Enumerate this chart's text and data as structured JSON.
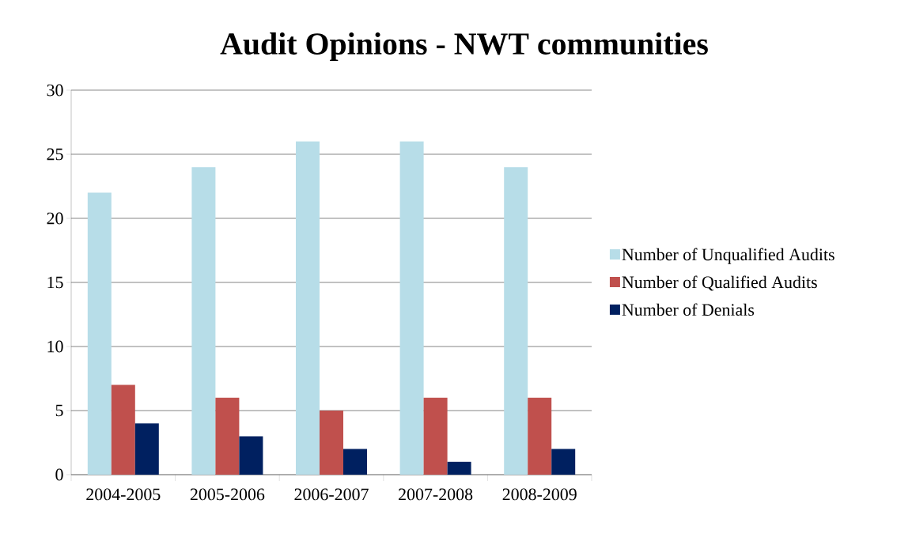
{
  "chart_data": {
    "type": "bar",
    "title": "Audit Opinions - NWT communities",
    "categories": [
      "2004-2005",
      "2005-2006",
      "2006-2007",
      "2007-2008",
      "2008-2009"
    ],
    "series": [
      {
        "name": "Number of Unqualified Audits",
        "color": "#b7dde8",
        "values": [
          22,
          24,
          26,
          26,
          24
        ]
      },
      {
        "name": "Number of Qualified Audits",
        "color": "#c0504d",
        "values": [
          7,
          6,
          5,
          6,
          6
        ]
      },
      {
        "name": "Number of Denials",
        "color": "#002060",
        "values": [
          4,
          3,
          2,
          1,
          2
        ]
      }
    ],
    "ylim": [
      0,
      30
    ],
    "yticks": [
      0,
      5,
      10,
      15,
      20,
      25,
      30
    ],
    "grid": "y",
    "legend": "right"
  }
}
